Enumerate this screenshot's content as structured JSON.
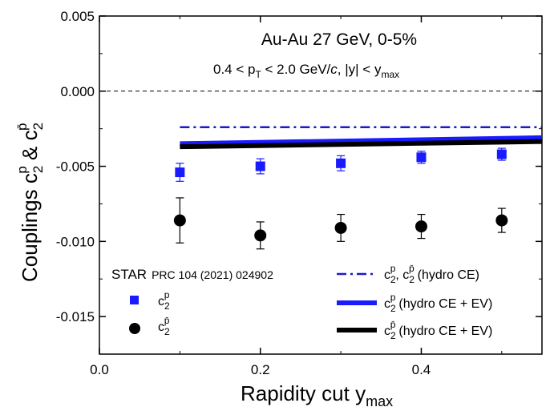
{
  "chart_data": {
    "type": "scatter",
    "title": "Au-Au 27 GeV, 0-5%",
    "subtitle": {
      "pt_range_prefix": "0.4 < p",
      "pt_sub": "T",
      "pt_range_suffix": " < 2.0 GeV/",
      "pt_unit_italic": "c",
      "rapidity_part": ", |y| < y",
      "rapidity_sub": "max"
    },
    "xlabel": {
      "main": "Rapidity cut y",
      "sub": "max"
    },
    "ylabel": {
      "main": "Couplings c",
      "sub1": "2",
      "sup1": "p",
      "amp": " & c",
      "sub2": "2",
      "sup2": "p̄"
    },
    "xlim": [
      0.0,
      0.55
    ],
    "ylim": [
      -0.0175,
      0.005
    ],
    "xticks": [
      {
        "value": 0.0,
        "label": "0.0"
      },
      {
        "value": 0.2,
        "label": "0.2"
      },
      {
        "value": 0.4,
        "label": "0.4"
      }
    ],
    "yticks": [
      {
        "value": 0.005,
        "label": "0.005"
      },
      {
        "value": 0.0,
        "label": "0.000"
      },
      {
        "value": -0.005,
        "label": "-0.005"
      },
      {
        "value": -0.01,
        "label": "-0.010"
      },
      {
        "value": -0.015,
        "label": "-0.015"
      }
    ],
    "zero_line": {
      "y": 0.0,
      "style": "dashed"
    },
    "series": [
      {
        "name": "c2p",
        "kind": "points",
        "marker": "square",
        "color": "#1a1aff",
        "x": [
          0.1,
          0.2,
          0.3,
          0.4,
          0.5
        ],
        "y": [
          -0.0054,
          -0.005,
          -0.0048,
          -0.0044,
          -0.0042
        ],
        "yerr": [
          0.0006,
          0.0005,
          0.0005,
          0.0004,
          0.0004
        ]
      },
      {
        "name": "c2pbar",
        "kind": "points",
        "marker": "circle",
        "color": "#000000",
        "x": [
          0.1,
          0.2,
          0.3,
          0.4,
          0.5
        ],
        "y": [
          -0.0086,
          -0.0096,
          -0.0091,
          -0.009,
          -0.0086
        ],
        "yerr": [
          0.0015,
          0.0009,
          0.0009,
          0.0008,
          0.0008
        ]
      },
      {
        "name": "hydro CE",
        "kind": "line",
        "style": "dashdot",
        "color": "#1a1acc",
        "x": [
          0.1,
          0.55
        ],
        "y": [
          -0.0024,
          -0.0024
        ]
      },
      {
        "name": "c2p hydro CE + EV",
        "kind": "line",
        "style": "solid-thick",
        "color": "#1a1aff",
        "x": [
          0.1,
          0.55
        ],
        "y": [
          -0.0035,
          -0.0031
        ]
      },
      {
        "name": "c2pbar hydro CE + EV",
        "kind": "line",
        "style": "solid-thick",
        "color": "#000000",
        "x": [
          0.1,
          0.55
        ],
        "y": [
          -0.0037,
          -0.00335
        ]
      }
    ],
    "legend": {
      "placement": "bottom",
      "source_name": "STAR",
      "source_ref": "PRC 104 (2021) 024902",
      "c2p_label": {
        "main": "c",
        "sub": "2",
        "sup": "p"
      },
      "c2pbar_label": {
        "main": "c",
        "sub": "2",
        "sup": "p̄"
      },
      "hydro_ce_text": "(hydro CE)",
      "hydro_ceev_text": "(hydro CE + EV)"
    },
    "colors": {
      "proton": "#1a1aff",
      "antiproton": "#000000",
      "hydro_ce": "#1a1acc"
    }
  }
}
